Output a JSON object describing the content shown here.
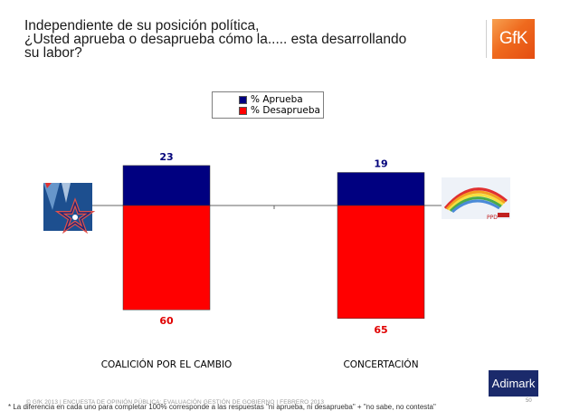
{
  "header": {
    "title_lines": [
      "Independiente de su posición política,",
      "¿Usted aprueba o desaprueba cómo la..... esta desarrollando",
      "su labor?"
    ],
    "logo_text": "GfK"
  },
  "chart_data": {
    "type": "bar",
    "subtype": "diverging-stacked",
    "title": "Independiente de su posición política, ¿Usted aprueba o desaprueba cómo la..... esta desarrollando su labor?",
    "categories": [
      "COALICIÓN POR EL CAMBIO",
      "CONCERTACIÓN"
    ],
    "series": [
      {
        "name": "% Aprueba",
        "values": [
          23,
          19
        ],
        "color": "#000080",
        "direction": "up"
      },
      {
        "name": "% Desaprueba",
        "values": [
          60,
          65
        ],
        "color": "#ff0000",
        "direction": "down"
      }
    ],
    "legend": {
      "position": "top-center",
      "entries": [
        "% Aprueba",
        "% Desaprueba"
      ]
    },
    "label_colors": {
      "aprueba": "#00007a",
      "desaprueba": "#e00000"
    },
    "category_icons": [
      "coalicion-star-logo",
      "concertacion-rainbow-logo"
    ],
    "xlabel": "",
    "ylabel": "",
    "grid": false
  },
  "footer": {
    "brand": "Adimark",
    "copyright": "© GfK 2013 | ENCUESTA DE OPINIÓN PÚBLICA: EVALUACIÓN GESTIÓN DE GOBIERNO | FEBRERO 2013",
    "note": "* La diferencia en cada uno para completar 100% corresponde a las respuestas \"ni aprueba, ni desaprueba\" + \"no sabe, no contesta\"",
    "page_number": "50"
  }
}
